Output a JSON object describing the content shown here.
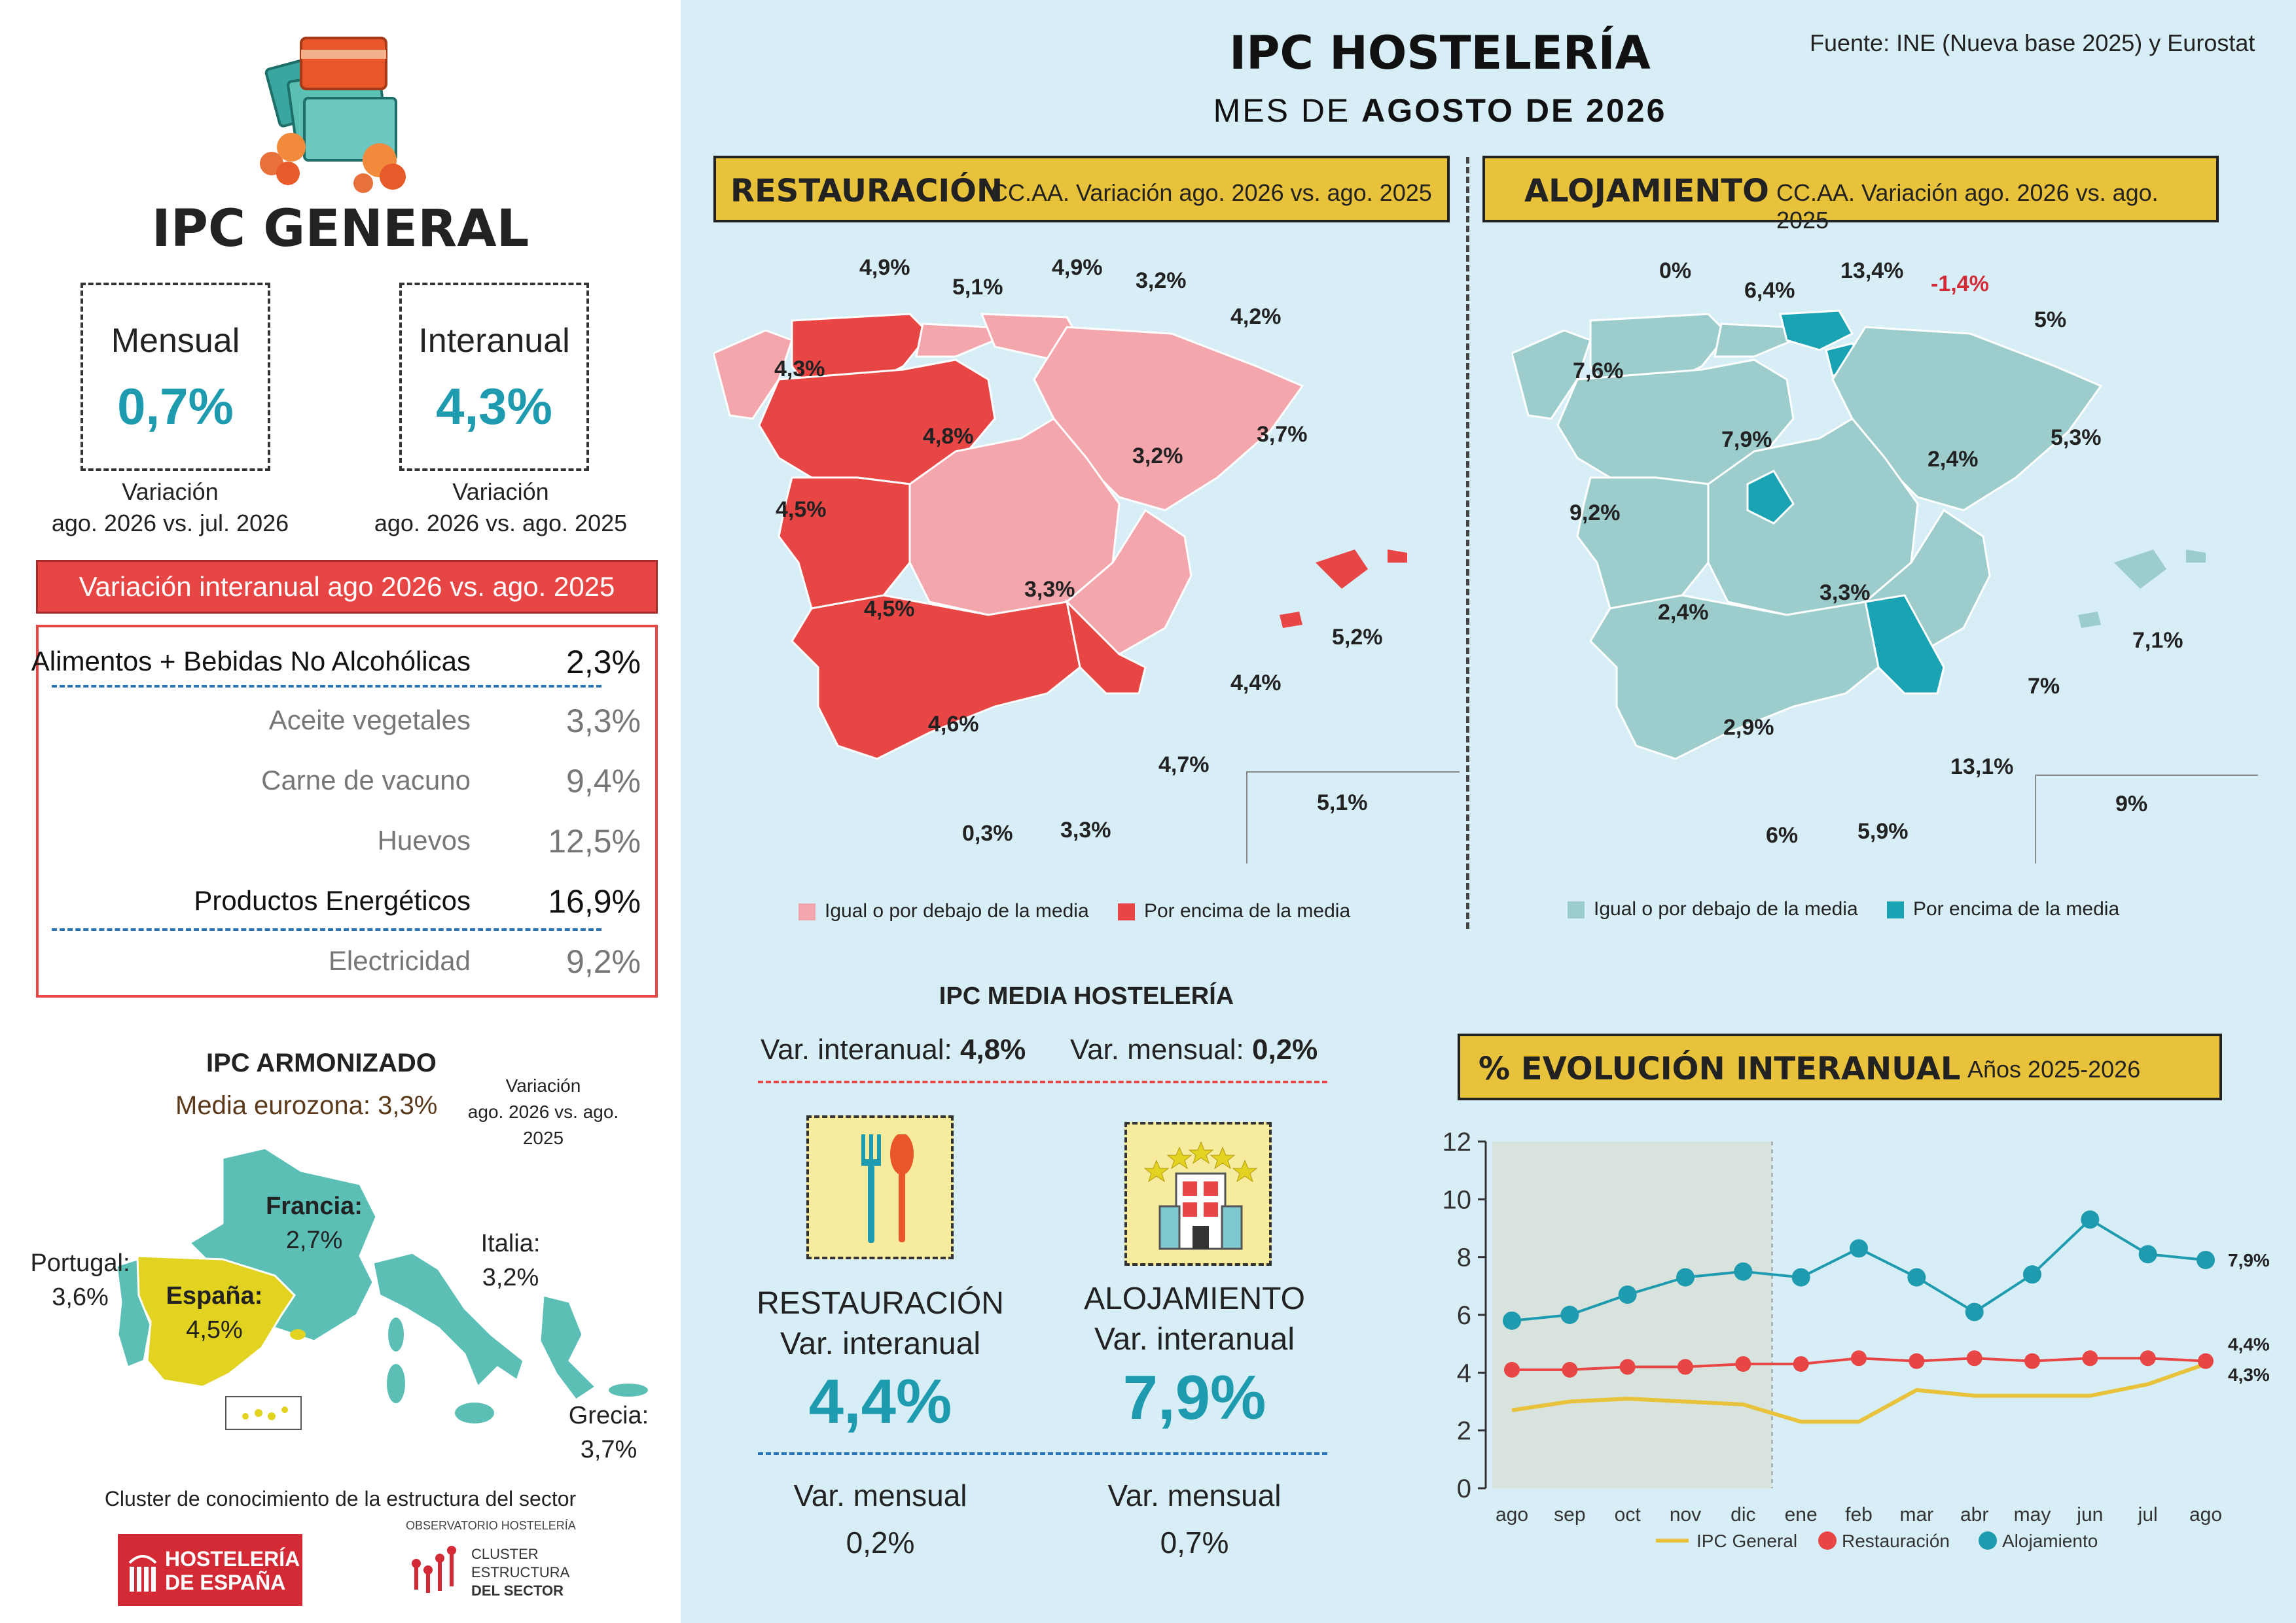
{
  "header": {
    "title": "IPC HOSTELERÍA",
    "subtitle_prefix": "MES DE ",
    "subtitle_bold": "AGOSTO DE 2026",
    "source": "Fuente: INE (Nueva base 2025) y Eurostat"
  },
  "ipc_general": {
    "title": "IPC GENERAL",
    "mensual": {
      "label": "Mensual",
      "value": "0,7%",
      "note_line1": "Variación",
      "note_line2": "ago. 2026 vs. jul. 2026"
    },
    "interanual": {
      "label": "Interanual",
      "value": "4,3%",
      "note_line1": "Variación",
      "note_line2": "ago. 2026 vs. ago. 2025"
    }
  },
  "variation_table": {
    "title": "Variación interanual ago 2026 vs. ago. 2025",
    "rows": [
      {
        "label": "Alimentos + Bebidas No Alcohólicas",
        "value": "2,3%",
        "main": true
      },
      {
        "label": "Aceite vegetales",
        "value": "3,3%",
        "main": false
      },
      {
        "label": "Carne de vacuno",
        "value": "9,4%",
        "main": false
      },
      {
        "label": "Huevos",
        "value": "12,5%",
        "main": false
      },
      {
        "label": "Productos Energéticos",
        "value": "16,9%",
        "main": true
      },
      {
        "label": "Electricidad",
        "value": "9,2%",
        "main": false
      }
    ]
  },
  "ipc_armonizado": {
    "title": "IPC ARMONIZADO",
    "eurozone": "Media eurozona: 3,3%",
    "note_line1": "Variación",
    "note_line2": "ago. 2026 vs. ago. 2025",
    "countries": [
      {
        "name": "Francia:",
        "value": "2,7%"
      },
      {
        "name": "Italia:",
        "value": "3,2%"
      },
      {
        "name": "Portugal:",
        "value": "3,6%"
      },
      {
        "name": "España:",
        "value": "4,5%"
      },
      {
        "name": "Grecia:",
        "value": "3,7%"
      }
    ]
  },
  "footer": {
    "cluster_text": "Cluster de conocimiento de la estructura del sector",
    "logo1_line1": "HOSTELERÍA",
    "logo1_line2": "DE ESPAÑA",
    "logo2_top": "OBSERVATORIO HOSTELERÍA",
    "logo2_line1": "CLUSTER",
    "logo2_line2": "ESTRUCTURA",
    "logo2_line3": "DEL SECTOR"
  },
  "restauracion_map": {
    "title": "RESTAURACIÓN",
    "subtitle": "CC.AA. Variación ago. 2026 vs. ago. 2025",
    "labels": [
      "4,9%",
      "5,1%",
      "4,9%",
      "3,2%",
      "4,2%",
      "4,3%",
      "4,8%",
      "3,2%",
      "3,7%",
      "4,5%",
      "3,3%",
      "4,5%",
      "5,2%",
      "4,4%",
      "4,6%",
      "4,7%",
      "5,1%",
      "0,3%",
      "3,3%"
    ],
    "legend_below": "Igual o por debajo de la media",
    "legend_above": "Por encima de la media"
  },
  "alojamiento_map": {
    "title": "ALOJAMIENTO",
    "subtitle": "CC.AA. Variación ago. 2026 vs. ago. 2025",
    "labels": [
      "0%",
      "6,4%",
      "13,4%",
      "-1,4%",
      "5%",
      "7,6%",
      "7,9%",
      "2,4%",
      "5,3%",
      "9,2%",
      "3,3%",
      "2,4%",
      "7,1%",
      "7%",
      "2,9%",
      "13,1%",
      "9%",
      "6%",
      "5,9%"
    ],
    "legend_below": "Igual o por debajo de la media",
    "legend_above": "Por encima de la media"
  },
  "ipc_media": {
    "title": "IPC MEDIA HOSTELERÍA",
    "interanual_label": "Var. interanual:",
    "interanual_value": "4,8%",
    "mensual_label": "Var. mensual:",
    "mensual_value": "0,2%",
    "restauracion": {
      "name": "RESTAURACIÓN",
      "interanual_label": "Var. interanual",
      "interanual_value": "4,4%",
      "mensual_label": "Var. mensual",
      "mensual_value": "0,2%"
    },
    "alojamiento": {
      "name": "ALOJAMIENTO",
      "interanual_label": "Var. interanual",
      "interanual_value": "7,9%",
      "mensual_label": "Var. mensual",
      "mensual_value": "0,7%"
    }
  },
  "colors": {
    "teal": "#1f9bb0",
    "red": "#e84545",
    "pink": "#f4a6ad",
    "light_teal": "#9ccccc",
    "dark_teal": "#1aa3b3",
    "yellow": "#e8c23a",
    "spain_yellow": "#e2d320"
  },
  "chart_data": {
    "type": "line",
    "title": "% EVOLUCIÓN INTERANUAL",
    "subtitle": "Años 2025-2026",
    "categories": [
      "ago",
      "sep",
      "oct",
      "nov",
      "dic",
      "ene",
      "feb",
      "mar",
      "abr",
      "may",
      "jun",
      "jul",
      "ago"
    ],
    "series": [
      {
        "name": "IPC General",
        "values": [
          2.7,
          3.0,
          3.1,
          3.0,
          2.9,
          2.3,
          2.3,
          3.4,
          3.2,
          3.2,
          3.2,
          3.6,
          4.3
        ],
        "end_label": "4,3%"
      },
      {
        "name": "Restauración",
        "values": [
          4.1,
          4.1,
          4.2,
          4.2,
          4.3,
          4.3,
          4.5,
          4.4,
          4.5,
          4.4,
          4.5,
          4.5,
          4.4
        ],
        "end_label": "4,4%"
      },
      {
        "name": "Alojamiento",
        "values": [
          5.8,
          6.0,
          6.7,
          7.3,
          7.5,
          7.3,
          8.3,
          7.3,
          6.1,
          7.4,
          9.3,
          8.1,
          7.9
        ],
        "end_label": "7,9%"
      }
    ],
    "ylim": [
      0,
      12
    ],
    "yticks": [
      "0",
      "2",
      "4",
      "6",
      "8",
      "10",
      "12"
    ],
    "shaded_range": [
      "ago",
      "dic"
    ]
  }
}
